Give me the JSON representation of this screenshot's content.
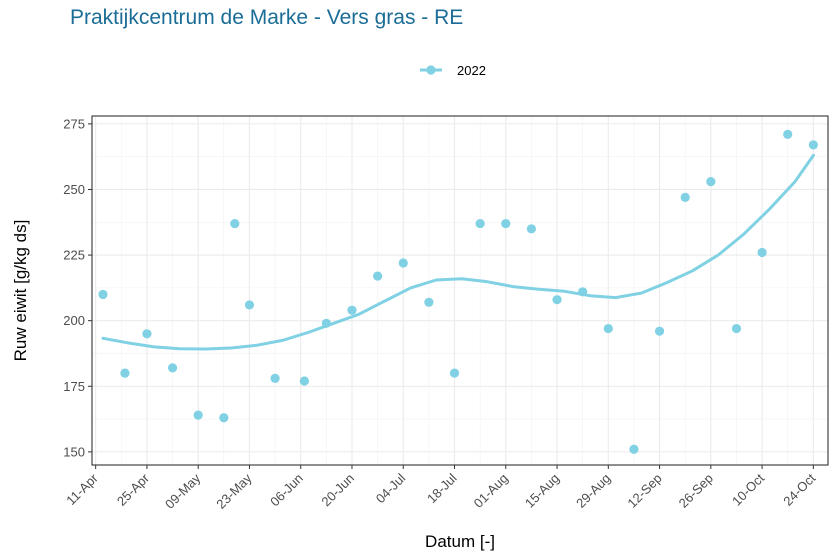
{
  "chart_data": {
    "type": "scatter",
    "title": "Praktijkcentrum de Marke - Vers gras - RE",
    "xlabel": "Datum [-]",
    "ylabel": "Ruw eiwit [g/kg ds]",
    "x_axis_type": "date",
    "xlim": [
      "2022-04-10",
      "2022-10-28"
    ],
    "ylim": [
      145,
      278
    ],
    "x_ticks": [
      "2022-04-11",
      "2022-04-25",
      "2022-05-09",
      "2022-05-23",
      "2022-06-06",
      "2022-06-20",
      "2022-07-04",
      "2022-07-18",
      "2022-08-01",
      "2022-08-15",
      "2022-08-29",
      "2022-09-12",
      "2022-09-26",
      "2022-10-10",
      "2022-10-24"
    ],
    "x_tick_labels": [
      "11-Apr",
      "25-Apr",
      "09-May",
      "23-May",
      "06-Jun",
      "20-Jun",
      "04-Jul",
      "18-Jul",
      "01-Aug",
      "15-Aug",
      "29-Aug",
      "12-Sep",
      "26-Sep",
      "10-Oct",
      "24-Oct"
    ],
    "y_ticks": [
      150,
      175,
      200,
      225,
      250,
      275
    ],
    "grid": true,
    "legend_position": "top",
    "series": [
      {
        "name": "2022",
        "color": "#7fd1e3",
        "points": [
          {
            "x": "2022-04-13",
            "y": 210
          },
          {
            "x": "2022-04-19",
            "y": 180
          },
          {
            "x": "2022-04-25",
            "y": 195
          },
          {
            "x": "2022-05-02",
            "y": 182
          },
          {
            "x": "2022-05-09",
            "y": 164
          },
          {
            "x": "2022-05-16",
            "y": 163
          },
          {
            "x": "2022-05-19",
            "y": 237
          },
          {
            "x": "2022-05-23",
            "y": 206
          },
          {
            "x": "2022-05-30",
            "y": 178
          },
          {
            "x": "2022-06-07",
            "y": 177
          },
          {
            "x": "2022-06-13",
            "y": 199
          },
          {
            "x": "2022-06-20",
            "y": 204
          },
          {
            "x": "2022-06-27",
            "y": 217
          },
          {
            "x": "2022-07-04",
            "y": 222
          },
          {
            "x": "2022-07-11",
            "y": 207
          },
          {
            "x": "2022-07-18",
            "y": 180
          },
          {
            "x": "2022-07-25",
            "y": 237
          },
          {
            "x": "2022-08-01",
            "y": 237
          },
          {
            "x": "2022-08-08",
            "y": 235
          },
          {
            "x": "2022-08-15",
            "y": 208
          },
          {
            "x": "2022-08-22",
            "y": 211
          },
          {
            "x": "2022-08-29",
            "y": 197
          },
          {
            "x": "2022-09-05",
            "y": 151
          },
          {
            "x": "2022-09-12",
            "y": 196
          },
          {
            "x": "2022-09-19",
            "y": 247
          },
          {
            "x": "2022-09-26",
            "y": 253
          },
          {
            "x": "2022-10-03",
            "y": 197
          },
          {
            "x": "2022-10-10",
            "y": 226
          },
          {
            "x": "2022-10-17",
            "y": 271
          },
          {
            "x": "2022-10-24",
            "y": 267
          }
        ],
        "trend": [
          {
            "x": "2022-04-13",
            "y": 193.3
          },
          {
            "x": "2022-04-20",
            "y": 191.5
          },
          {
            "x": "2022-04-27",
            "y": 190
          },
          {
            "x": "2022-05-04",
            "y": 189.3
          },
          {
            "x": "2022-05-11",
            "y": 189.2
          },
          {
            "x": "2022-05-18",
            "y": 189.6
          },
          {
            "x": "2022-05-25",
            "y": 190.6
          },
          {
            "x": "2022-06-01",
            "y": 192.5
          },
          {
            "x": "2022-06-08",
            "y": 195.5
          },
          {
            "x": "2022-06-15",
            "y": 199
          },
          {
            "x": "2022-06-22",
            "y": 202.5
          },
          {
            "x": "2022-06-29",
            "y": 207.5
          },
          {
            "x": "2022-07-06",
            "y": 212.5
          },
          {
            "x": "2022-07-13",
            "y": 215.5
          },
          {
            "x": "2022-07-20",
            "y": 216
          },
          {
            "x": "2022-07-27",
            "y": 214.8
          },
          {
            "x": "2022-08-03",
            "y": 213
          },
          {
            "x": "2022-08-10",
            "y": 212
          },
          {
            "x": "2022-08-17",
            "y": 211.2
          },
          {
            "x": "2022-08-24",
            "y": 209.5
          },
          {
            "x": "2022-08-31",
            "y": 208.8
          },
          {
            "x": "2022-09-07",
            "y": 210.5
          },
          {
            "x": "2022-09-14",
            "y": 214.5
          },
          {
            "x": "2022-09-21",
            "y": 219
          },
          {
            "x": "2022-09-28",
            "y": 225
          },
          {
            "x": "2022-10-05",
            "y": 233
          },
          {
            "x": "2022-10-12",
            "y": 242.5
          },
          {
            "x": "2022-10-19",
            "y": 253
          },
          {
            "x": "2022-10-24",
            "y": 263
          }
        ]
      }
    ]
  }
}
